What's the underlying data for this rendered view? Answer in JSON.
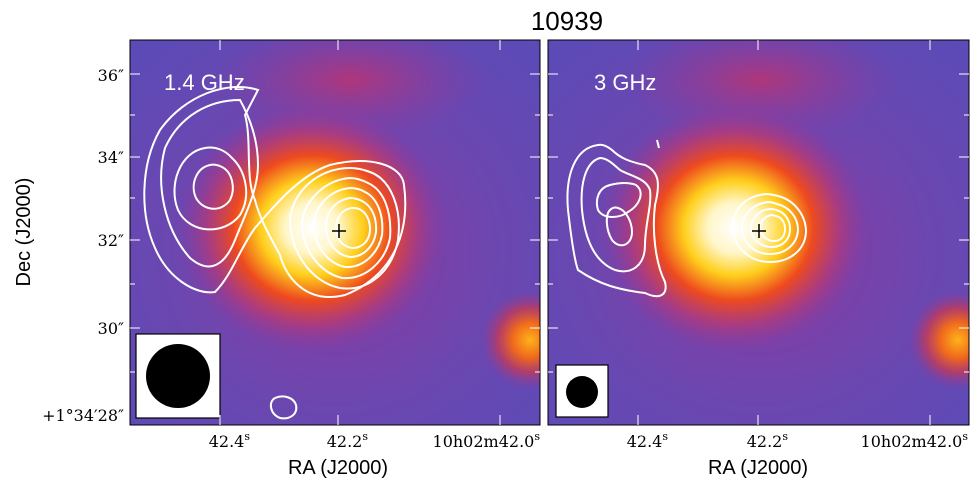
{
  "figure": {
    "title": "10939",
    "ylabel": "Dec (J2000)",
    "ytick_labels": [
      "36″",
      "34″",
      "32″",
      "30″",
      "+1°34′28″"
    ],
    "panels": [
      {
        "band_label": "1.4 GHz",
        "xlabel": "RA (J2000)",
        "xtick_labels": [
          "42.4",
          "42.2",
          "10h02m42.0"
        ],
        "beam": "large-circle"
      },
      {
        "band_label": "3 GHz",
        "xlabel": "RA (J2000)",
        "xtick_labels": [
          "42.4",
          "42.2",
          "10h02m42.0"
        ],
        "beam": "small-circle"
      }
    ],
    "colors": {
      "background": "#7a3fa8",
      "source_core": "#ffffff",
      "source_mid": "#ffd21e",
      "source_outer": "#e8401e",
      "contour": "#ffffff",
      "marker": "#000000"
    }
  }
}
